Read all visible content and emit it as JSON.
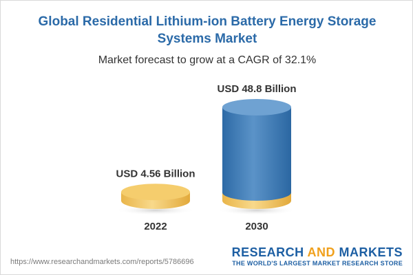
{
  "header": {
    "title": "Global Residential Lithium-ion Battery Energy Storage Systems Market",
    "subtitle": "Market forecast to grow at a CAGR of 32.1%"
  },
  "chart_data": {
    "type": "bar",
    "categories": [
      "2022",
      "2030"
    ],
    "values": [
      4.56,
      48.8
    ],
    "data_labels": [
      "USD 4.56 Billion",
      "USD 48.8 Billion"
    ],
    "unit": "USD Billion",
    "title": "Global Residential Lithium-ion Battery Energy Storage Systems Market",
    "subtitle": "Market forecast to grow at a CAGR of 32.1%",
    "ylim": [
      0,
      48.8
    ],
    "grid": false,
    "legend": "none",
    "colors": {
      "base_cylinder": "#f3c764",
      "forecast_cylinder": "#3f7db8"
    }
  },
  "footer": {
    "url": "https://www.researchandmarkets.com/reports/5786696",
    "brand_word1": "RESEARCH",
    "brand_word2": "AND",
    "brand_word3": "MARKETS",
    "tagline": "THE WORLD'S LARGEST MARKET RESEARCH STORE"
  }
}
